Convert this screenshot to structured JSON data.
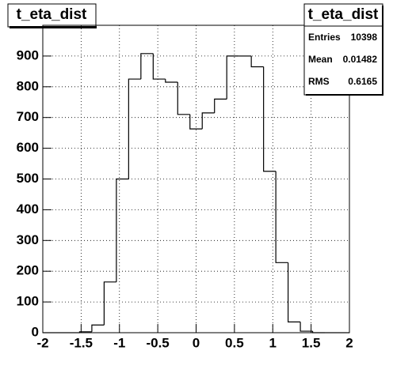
{
  "chart_data": {
    "type": "histogram",
    "title": "t_eta_dist",
    "bins": [
      -2,
      -1.84,
      -1.68,
      -1.52,
      -1.36,
      -1.2,
      -1.04,
      -0.88,
      -0.72,
      -0.56,
      -0.4,
      -0.24,
      -0.08,
      0.08,
      0.24,
      0.4,
      0.56,
      0.72,
      0.88,
      1.04,
      1.2,
      1.36,
      1.52,
      1.68,
      1.84,
      2
    ],
    "values": [
      0,
      0,
      0,
      3,
      25,
      165,
      500,
      825,
      908,
      825,
      815,
      710,
      663,
      715,
      760,
      900,
      900,
      865,
      525,
      228,
      35,
      5,
      0,
      0,
      0
    ],
    "color": "#000000",
    "xlim": [
      -2,
      2
    ],
    "xticks": [
      -2,
      -1.5,
      -1,
      -0.5,
      0,
      0.5,
      1,
      1.5,
      2
    ],
    "ylim": [
      0,
      1000
    ],
    "yticks": [
      0,
      100,
      200,
      300,
      400,
      500,
      600,
      700,
      800,
      900
    ],
    "grid": true,
    "stats_title": "t_eta_dist",
    "stats": [
      {
        "label": "Entries",
        "value": "10398"
      },
      {
        "label": "Mean",
        "value": "0.01482"
      },
      {
        "label": "RMS",
        "value": "0.6165"
      }
    ]
  }
}
